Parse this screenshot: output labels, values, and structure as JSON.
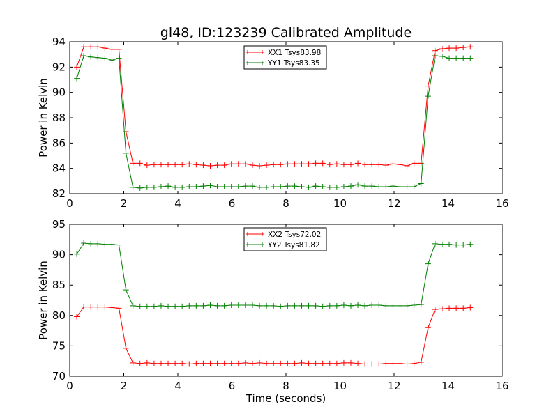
{
  "figure": {
    "title": "gl48, ID:123239 Calibrated Amplitude"
  },
  "chart_data": [
    {
      "type": "line",
      "title": "gl48, ID:123239 Calibrated Amplitude",
      "xlabel": "",
      "ylabel": "Power in Kelvin",
      "xlim": [
        0,
        16
      ],
      "ylim": [
        82,
        94
      ],
      "xticks": [
        0,
        2,
        4,
        6,
        8,
        10,
        12,
        14,
        16
      ],
      "yticks": [
        82,
        84,
        86,
        88,
        90,
        92,
        94
      ],
      "grid": false,
      "legend_position": "top-center",
      "x": [
        0.26,
        0.52,
        0.78,
        1.04,
        1.3,
        1.56,
        1.82,
        2.08,
        2.34,
        2.6,
        2.86,
        3.12,
        3.38,
        3.64,
        3.9,
        4.16,
        4.42,
        4.68,
        4.94,
        5.2,
        5.46,
        5.72,
        5.98,
        6.24,
        6.5,
        6.76,
        7.02,
        7.28,
        7.54,
        7.8,
        8.06,
        8.32,
        8.58,
        8.84,
        9.1,
        9.36,
        9.62,
        9.88,
        10.14,
        10.4,
        10.66,
        10.92,
        11.18,
        11.44,
        11.7,
        11.96,
        12.22,
        12.48,
        12.74,
        13.0,
        13.26,
        13.52,
        13.78,
        14.04,
        14.3,
        14.56,
        14.82
      ],
      "series": [
        {
          "name": "XX1 Tsys83.98",
          "color": "#ff0000",
          "values": [
            92.0,
            93.6,
            93.6,
            93.6,
            93.5,
            93.4,
            93.4,
            86.9,
            84.4,
            84.4,
            84.25,
            84.3,
            84.3,
            84.3,
            84.3,
            84.3,
            84.35,
            84.3,
            84.25,
            84.2,
            84.25,
            84.25,
            84.35,
            84.35,
            84.35,
            84.25,
            84.2,
            84.25,
            84.3,
            84.3,
            84.35,
            84.35,
            84.35,
            84.35,
            84.4,
            84.4,
            84.3,
            84.35,
            84.3,
            84.3,
            84.4,
            84.3,
            84.3,
            84.3,
            84.25,
            84.35,
            84.3,
            84.2,
            84.4,
            84.4,
            90.5,
            93.3,
            93.45,
            93.5,
            93.5,
            93.55,
            93.6
          ]
        },
        {
          "name": "YY1 Tsys83.35",
          "color": "#008000",
          "values": [
            91.1,
            92.9,
            92.8,
            92.75,
            92.7,
            92.55,
            92.7,
            85.2,
            82.5,
            82.45,
            82.5,
            82.5,
            82.55,
            82.6,
            82.5,
            82.5,
            82.55,
            82.55,
            82.6,
            82.65,
            82.55,
            82.55,
            82.55,
            82.55,
            82.6,
            82.6,
            82.5,
            82.5,
            82.55,
            82.55,
            82.6,
            82.6,
            82.55,
            82.5,
            82.6,
            82.55,
            82.5,
            82.5,
            82.55,
            82.6,
            82.7,
            82.6,
            82.6,
            82.55,
            82.55,
            82.6,
            82.55,
            82.55,
            82.55,
            82.8,
            89.7,
            92.9,
            92.85,
            92.7,
            92.7,
            92.7,
            92.7
          ]
        }
      ]
    },
    {
      "type": "line",
      "title": "",
      "xlabel": "Time (seconds)",
      "ylabel": "Power in Kelvin",
      "xlim": [
        0,
        16
      ],
      "ylim": [
        70,
        95
      ],
      "xticks": [
        0,
        2,
        4,
        6,
        8,
        10,
        12,
        14,
        16
      ],
      "yticks": [
        70,
        75,
        80,
        85,
        90,
        95
      ],
      "grid": false,
      "legend_position": "top-center",
      "x": [
        0.26,
        0.52,
        0.78,
        1.04,
        1.3,
        1.56,
        1.82,
        2.08,
        2.34,
        2.6,
        2.86,
        3.12,
        3.38,
        3.64,
        3.9,
        4.16,
        4.42,
        4.68,
        4.94,
        5.2,
        5.46,
        5.72,
        5.98,
        6.24,
        6.5,
        6.76,
        7.02,
        7.28,
        7.54,
        7.8,
        8.06,
        8.32,
        8.58,
        8.84,
        9.1,
        9.36,
        9.62,
        9.88,
        10.14,
        10.4,
        10.66,
        10.92,
        11.18,
        11.44,
        11.7,
        11.96,
        12.22,
        12.48,
        12.74,
        13.0,
        13.26,
        13.52,
        13.78,
        14.04,
        14.3,
        14.56,
        14.82
      ],
      "series": [
        {
          "name": "XX2 Tsys72.02",
          "color": "#ff0000",
          "values": [
            79.8,
            81.4,
            81.4,
            81.4,
            81.4,
            81.3,
            81.2,
            74.6,
            72.2,
            72.1,
            72.2,
            72.1,
            72.1,
            72.1,
            72.1,
            72.1,
            72.0,
            72.1,
            72.1,
            72.1,
            72.1,
            72.1,
            72.1,
            72.1,
            72.2,
            72.1,
            72.2,
            72.1,
            72.1,
            72.1,
            72.1,
            72.1,
            72.2,
            72.1,
            72.1,
            72.1,
            72.1,
            72.1,
            72.2,
            72.2,
            72.1,
            72.0,
            72.0,
            72.0,
            72.1,
            72.1,
            72.1,
            72.0,
            72.1,
            72.3,
            78.0,
            81.0,
            81.1,
            81.2,
            81.2,
            81.2,
            81.3
          ]
        },
        {
          "name": "YY2 Tsys81.82",
          "color": "#008000",
          "values": [
            90.1,
            91.9,
            91.8,
            91.8,
            91.7,
            91.7,
            91.6,
            84.2,
            81.6,
            81.5,
            81.5,
            81.5,
            81.6,
            81.5,
            81.5,
            81.5,
            81.6,
            81.6,
            81.6,
            81.7,
            81.6,
            81.6,
            81.7,
            81.7,
            81.7,
            81.7,
            81.6,
            81.6,
            81.6,
            81.5,
            81.6,
            81.6,
            81.6,
            81.6,
            81.6,
            81.5,
            81.6,
            81.6,
            81.7,
            81.6,
            81.7,
            81.6,
            81.7,
            81.7,
            81.6,
            81.6,
            81.6,
            81.6,
            81.7,
            81.8,
            88.5,
            91.8,
            91.7,
            91.7,
            91.6,
            91.6,
            91.7
          ]
        }
      ]
    }
  ]
}
